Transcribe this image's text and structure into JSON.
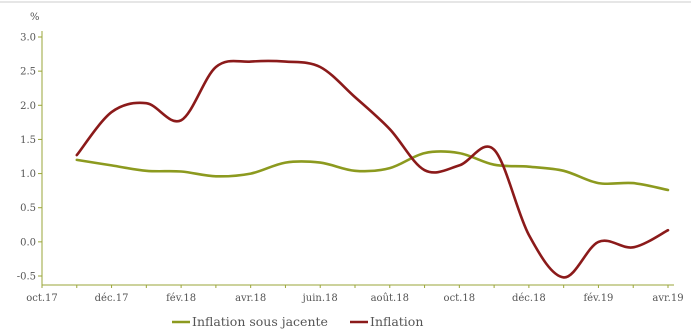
{
  "chart_data": {
    "type": "line",
    "unit_label": "%",
    "xlabel": "",
    "ylabel": "",
    "x_tick_labels": [
      "oct.17",
      "déc.17",
      "fév.18",
      "avr.18",
      "juin.18",
      "août.18",
      "oct.18",
      "déc.18",
      "fév.19",
      "avr.19"
    ],
    "x_range": [
      "2017-10",
      "2019-04"
    ],
    "ylim": [
      -0.5,
      3.0
    ],
    "y_ticks": [
      "3.0",
      "2.5",
      "2.0",
      "1.5",
      "1.0",
      "0.5",
      "0.0",
      "-0.5"
    ],
    "grid": false,
    "legend_position": "bottom",
    "series": [
      {
        "name": "Inflation sous jacente",
        "color": "#8c9a1f",
        "points": [
          [
            "2017-11",
            1.2
          ],
          [
            "2017-12",
            1.12
          ],
          [
            "2018-01",
            1.04
          ],
          [
            "2018-02",
            1.03
          ],
          [
            "2018-03",
            0.96
          ],
          [
            "2018-04",
            1.0
          ],
          [
            "2018-05",
            1.16
          ],
          [
            "2018-06",
            1.16
          ],
          [
            "2018-07",
            1.04
          ],
          [
            "2018-08",
            1.08
          ],
          [
            "2018-09",
            1.3
          ],
          [
            "2018-10",
            1.3
          ],
          [
            "2018-11",
            1.13
          ],
          [
            "2018-12",
            1.1
          ],
          [
            "2019-01",
            1.04
          ],
          [
            "2019-02",
            0.86
          ],
          [
            "2019-03",
            0.86
          ],
          [
            "2019-04",
            0.76
          ]
        ]
      },
      {
        "name": "Inflation",
        "color": "#8b1a1a",
        "points": [
          [
            "2017-11",
            1.27
          ],
          [
            "2017-12",
            1.9
          ],
          [
            "2018-01",
            2.03
          ],
          [
            "2018-02",
            1.78
          ],
          [
            "2018-03",
            2.56
          ],
          [
            "2018-04",
            2.64
          ],
          [
            "2018-05",
            2.64
          ],
          [
            "2018-06",
            2.56
          ],
          [
            "2018-07",
            2.12
          ],
          [
            "2018-08",
            1.65
          ],
          [
            "2018-09",
            1.05
          ],
          [
            "2018-10",
            1.12
          ],
          [
            "2018-11",
            1.35
          ],
          [
            "2018-12",
            0.1
          ],
          [
            "2019-01",
            -0.52
          ],
          [
            "2019-02",
            0.0
          ],
          [
            "2019-03",
            -0.08
          ],
          [
            "2019-04",
            0.17
          ]
        ]
      }
    ]
  }
}
